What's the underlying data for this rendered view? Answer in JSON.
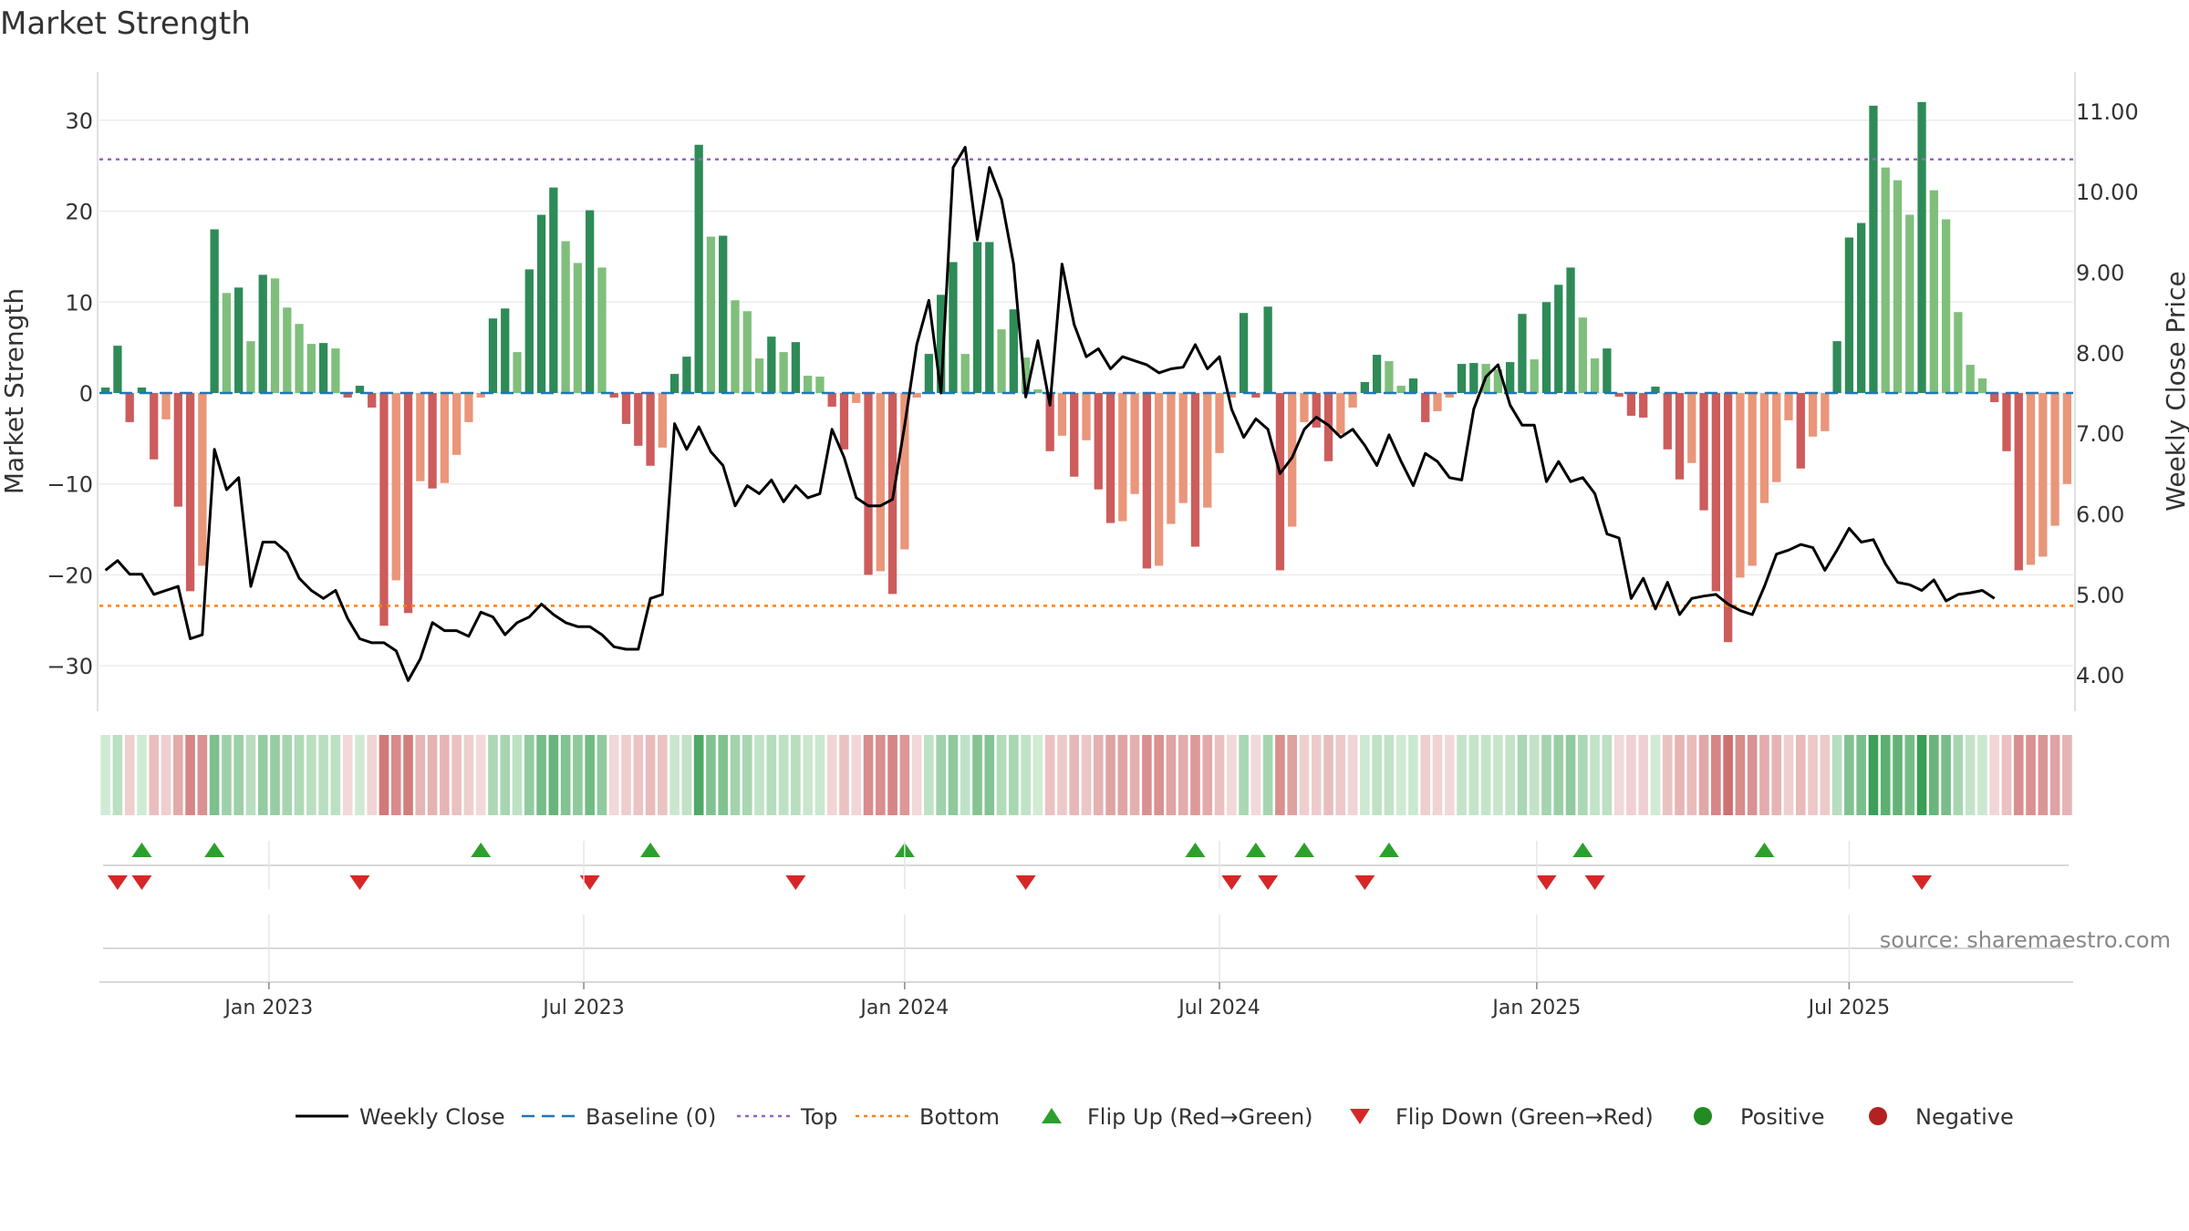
{
  "chart_data": {
    "type": "bar",
    "title": "Market Strength",
    "ylabel_left": "Market Strength",
    "ylabel_right": "Weekly Close Price",
    "source": "source: sharemaestro.com",
    "x_tick_labels": [
      "Jan 2023",
      "Jul 2023",
      "Jan 2024",
      "Jul 2024",
      "Jan 2025",
      "Jul 2025"
    ],
    "x_tick_weeks": [
      14,
      40,
      66.5,
      92.5,
      118.7,
      144.5
    ],
    "left_axis": {
      "ylim": [
        -35,
        35
      ],
      "ticks": [
        30,
        20,
        10,
        0,
        -10,
        -20,
        -30
      ],
      "tick_labels": [
        "30",
        "20",
        "10",
        "0",
        "−10",
        "−20",
        "−30"
      ]
    },
    "right_axis": {
      "ylim": [
        3.55,
        11.45
      ],
      "ticks": [
        11,
        10,
        9,
        8,
        7,
        6,
        5,
        4
      ],
      "tick_labels": [
        "11.00",
        "10.00",
        "9.00",
        "8.00",
        "7.00",
        "6.00",
        "5.00",
        "4.00"
      ]
    },
    "top_line": 25.7,
    "bottom_line": -23.4,
    "strength": [
      0.6,
      5.2,
      -3.2,
      0.6,
      -7.3,
      -2.9,
      -12.5,
      -21.8,
      -19,
      18,
      11,
      11.6,
      5.7,
      13,
      12.6,
      9.4,
      7.6,
      5.4,
      5.5,
      4.9,
      -0.5,
      0.8,
      -1.6,
      -25.6,
      -20.6,
      -24.2,
      -9.7,
      -10.5,
      -9.9,
      -6.8,
      -3.2,
      -0.5,
      8.2,
      9.3,
      4.5,
      13.6,
      19.6,
      22.6,
      16.7,
      14.3,
      20.1,
      13.8,
      -0.5,
      -3.4,
      -5.8,
      -8,
      -6,
      2.1,
      4,
      27.3,
      17.2,
      17.3,
      10.2,
      9,
      3.8,
      6.2,
      4.5,
      5.6,
      1.9,
      1.8,
      -1.5,
      -6.2,
      -1.1,
      -20,
      -19.6,
      -22.1,
      -17.2,
      -0.5,
      4.3,
      10.8,
      14.4,
      4.3,
      16.6,
      16.6,
      7,
      9.2,
      3.9,
      0.4,
      -6.4,
      -4.7,
      -9.2,
      -5.2,
      -10.6,
      -14.3,
      -14.1,
      -11.1,
      -19.3,
      -19,
      -14.4,
      -12.1,
      -16.9,
      -12.6,
      -6.6,
      -0.5,
      8.8,
      -0.5,
      9.5,
      -19.5,
      -14.7,
      -3.2,
      -3.8,
      -7.5,
      -4.5,
      -1.6,
      1.2,
      4.2,
      3.5,
      0.8,
      1.6,
      -3.2,
      -2,
      -0.5,
      3.2,
      3.3,
      3.2,
      2.6,
      3.4,
      8.7,
      3.7,
      10,
      11.9,
      13.8,
      8.3,
      3.8,
      4.9,
      -0.4,
      -2.5,
      -2.7,
      0.7,
      -6.2,
      -9.5,
      -7.7,
      -12.9,
      -21.8,
      -27.4,
      -20.3,
      -19,
      -12.1,
      -9.8,
      -3,
      -8.3,
      -4.8,
      -4.2,
      5.7,
      17.1,
      18.7,
      31.6,
      24.8,
      23.4,
      19.6,
      32,
      22.3,
      19.1,
      8.9,
      3.1,
      1.6,
      -1,
      -6.4,
      -19.5,
      -18.9,
      -18,
      -14.6,
      -10
    ],
    "weekly_close": [
      5.3,
      5.42,
      5.25,
      5.25,
      5,
      5.05,
      5.1,
      4.45,
      4.5,
      6.8,
      6.3,
      6.45,
      5.1,
      5.65,
      5.65,
      5.52,
      5.2,
      5.05,
      4.95,
      5.05,
      4.7,
      4.45,
      4.4,
      4.4,
      4.3,
      3.93,
      4.2,
      4.65,
      4.55,
      4.55,
      4.48,
      4.78,
      4.72,
      4.5,
      4.65,
      4.72,
      4.88,
      4.75,
      4.65,
      4.6,
      4.6,
      4.5,
      4.35,
      4.32,
      4.32,
      4.95,
      5,
      7.12,
      6.8,
      7.08,
      6.77,
      6.6,
      6.1,
      6.35,
      6.25,
      6.42,
      6.15,
      6.35,
      6.2,
      6.25,
      7.05,
      6.7,
      6.2,
      6.1,
      6.1,
      6.18,
      7.1,
      8.1,
      8.65,
      7.5,
      10.3,
      10.55,
      9.4,
      10.3,
      9.9,
      9.1,
      7.45,
      8.15,
      7.35,
      9.1,
      8.35,
      7.95,
      8.05,
      7.8,
      7.95,
      7.9,
      7.85,
      7.75,
      7.8,
      7.82,
      8.1,
      7.8,
      7.95,
      7.3,
      6.95,
      7.18,
      7.05,
      6.5,
      6.7,
      7.05,
      7.2,
      7.1,
      6.95,
      7.05,
      6.85,
      6.6,
      6.98,
      6.65,
      6.35,
      6.75,
      6.65,
      6.45,
      6.42,
      7.3,
      7.7,
      7.85,
      7.35,
      7.1,
      7.1,
      6.4,
      6.65,
      6.4,
      6.45,
      6.25,
      5.75,
      5.7,
      4.95,
      5.2,
      4.82,
      5.15,
      4.75,
      4.95,
      4.98,
      5,
      4.88,
      4.8,
      4.75,
      5.1,
      5.5,
      5.55,
      5.62,
      5.58,
      5.3,
      5.55,
      5.82,
      5.65,
      5.68,
      5.38,
      5.15,
      5.12,
      5.05,
      5.18,
      4.92,
      5,
      5.02,
      5.05,
      4.95
    ],
    "flip_up_weeks": [
      3,
      9,
      31,
      45,
      66,
      90,
      95,
      99,
      106,
      122,
      137
    ],
    "flip_down_weeks": [
      1,
      3,
      21,
      40,
      57,
      76,
      93,
      96,
      104,
      119,
      123,
      150
    ],
    "colors": {
      "strong_green": "#2e8b57",
      "light_green": "#7fbf7b",
      "strong_red": "#cd5c5c",
      "light_red": "#e9967a",
      "weekly_close": "#000000",
      "baseline": "#1f77b4",
      "top": "#9467bd",
      "bottom": "#ff7f0e",
      "flip_up": "#2ca02c",
      "flip_down": "#d62728",
      "positive": "#228b22",
      "negative": "#b22222"
    },
    "legend": {
      "position": "bottom-center",
      "items": [
        {
          "label": "Weekly Close",
          "kind": "line",
          "color": "#000000"
        },
        {
          "label": "Baseline (0)",
          "kind": "dash",
          "color": "#1f77b4"
        },
        {
          "label": "Top",
          "kind": "dot",
          "color": "#9467bd"
        },
        {
          "label": "Bottom",
          "kind": "dot",
          "color": "#ff7f0e"
        },
        {
          "label": "Flip Up (Red→Green)",
          "kind": "tri-up",
          "color": "#2ca02c"
        },
        {
          "label": "Flip Down (Green→Red)",
          "kind": "tri-down",
          "color": "#d62728"
        },
        {
          "label": "Positive",
          "kind": "circle",
          "color": "#228b22"
        },
        {
          "label": "Negative",
          "kind": "circle",
          "color": "#b22222"
        }
      ]
    }
  }
}
